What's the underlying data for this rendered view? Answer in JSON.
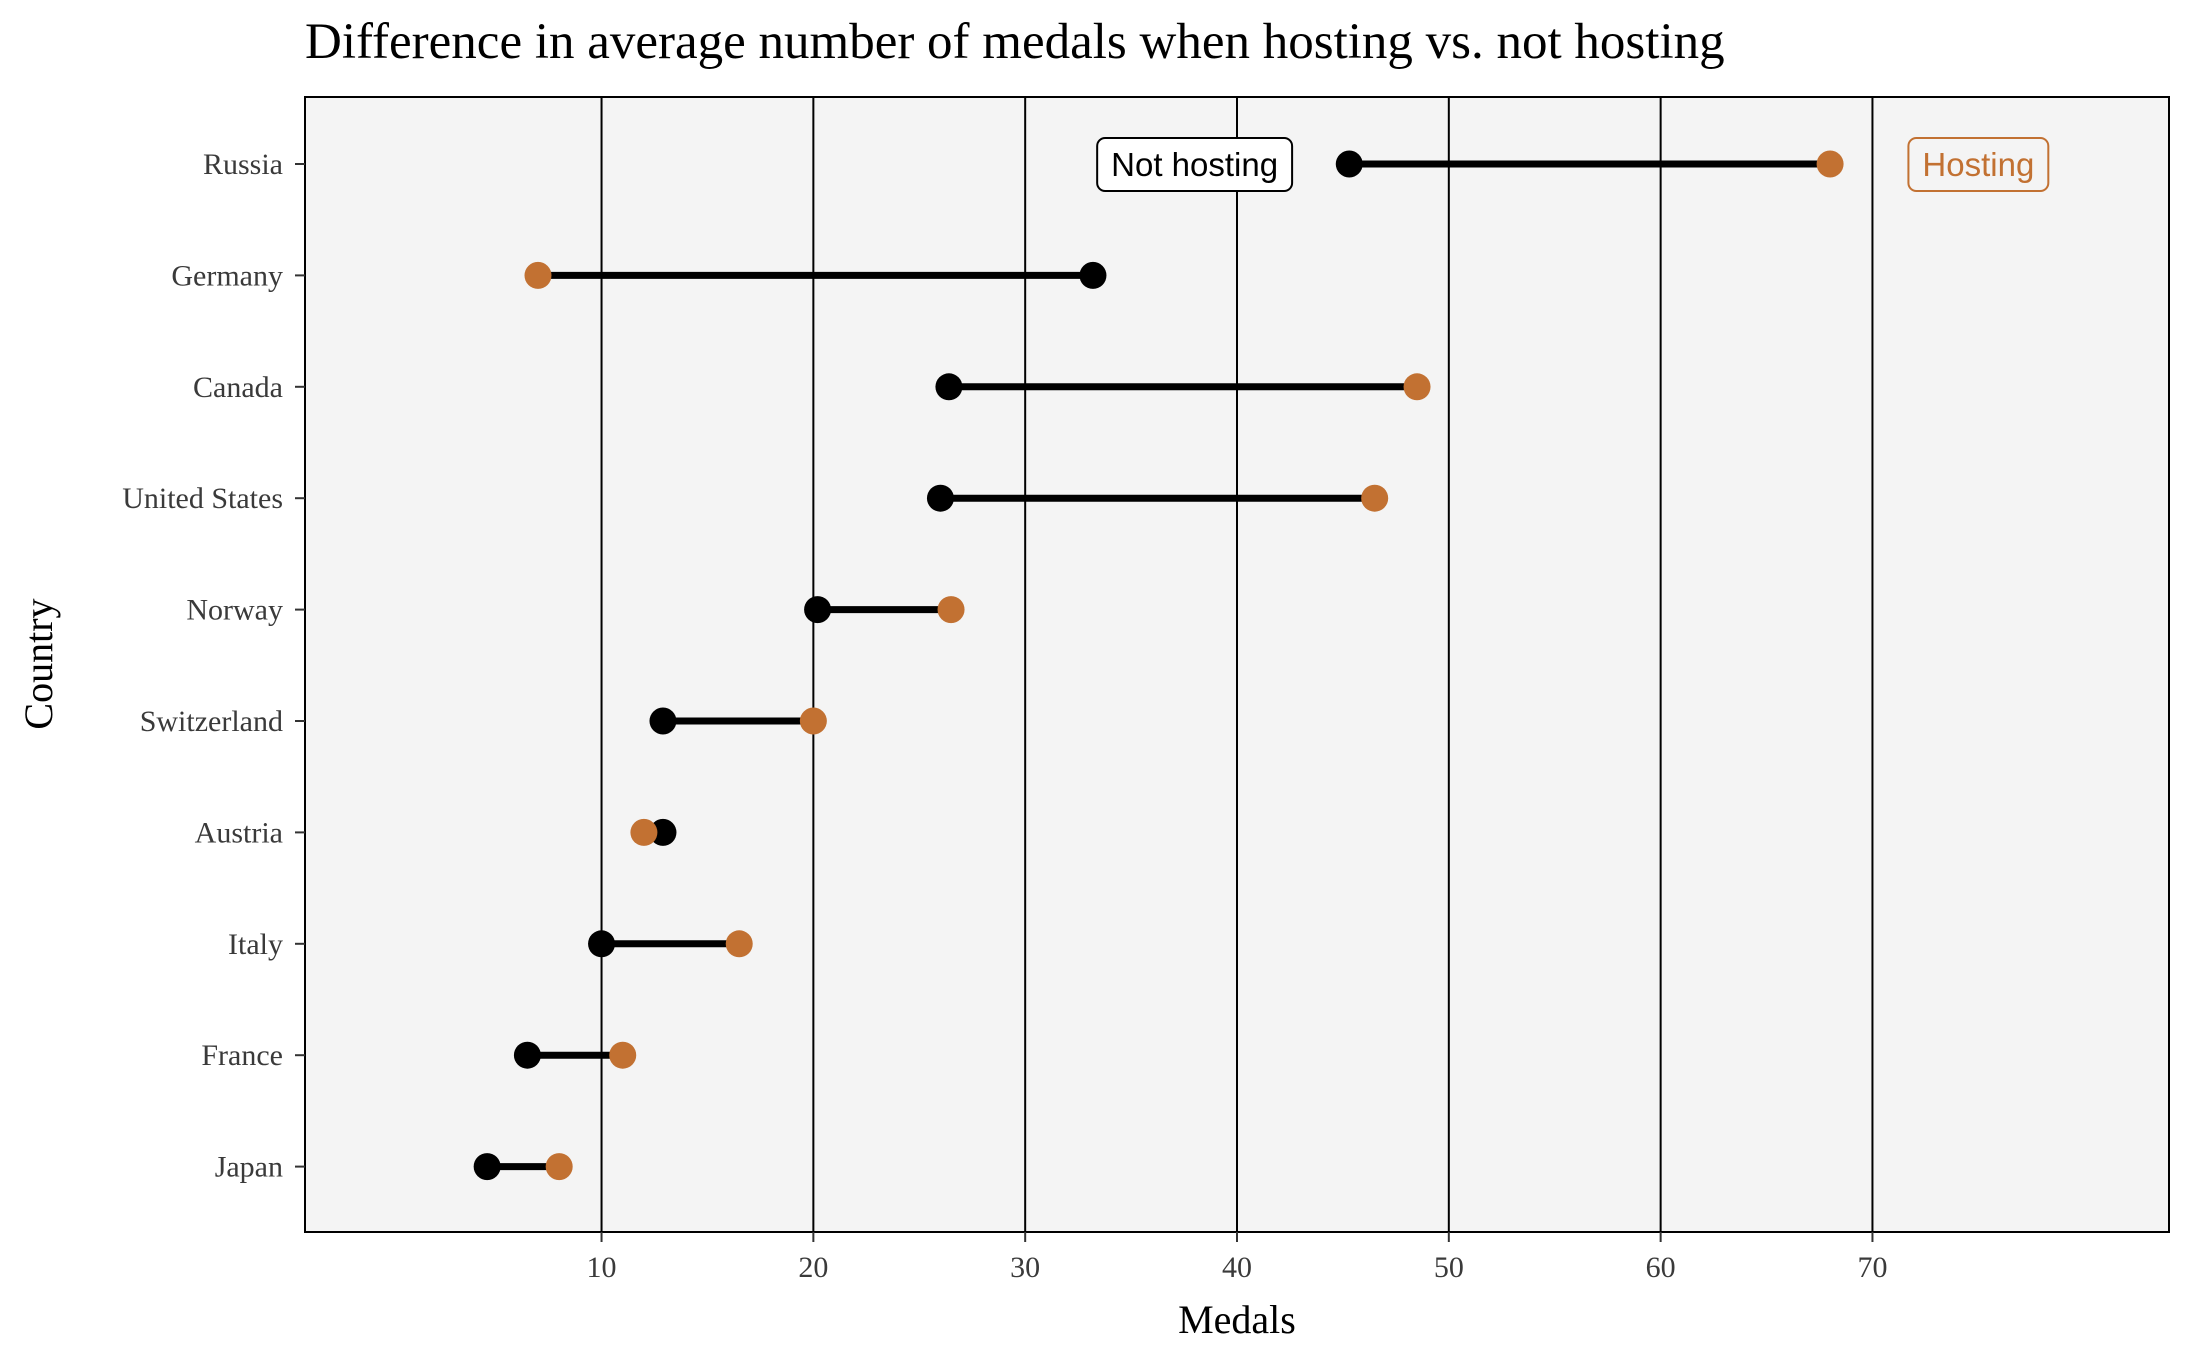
{
  "chart_data": {
    "type": "dumbbell",
    "title": "Difference in average number of medals when hosting vs. not hosting",
    "xlabel": "Medals",
    "ylabel": "Country",
    "xlim": [
      -4,
      84
    ],
    "xticks": [
      10,
      20,
      30,
      40,
      50,
      60,
      70
    ],
    "grid": "vertical major lines",
    "categories": [
      "Russia",
      "Germany",
      "Canada",
      "United States",
      "Norway",
      "Switzerland",
      "Austria",
      "Italy",
      "France",
      "Japan"
    ],
    "series": [
      {
        "name": "Not hosting",
        "color": "#000000",
        "values": [
          45.3,
          33.2,
          26.4,
          26.0,
          20.2,
          12.9,
          12.9,
          10.0,
          6.5,
          4.6
        ]
      },
      {
        "name": "Hosting",
        "color": "#c27132",
        "values": [
          68.0,
          7.0,
          48.5,
          46.5,
          26.5,
          20.0,
          12.0,
          16.5,
          11.0,
          8.0
        ]
      }
    ],
    "annotations": [
      {
        "text": "Not hosting",
        "category": "Russia",
        "x": 38,
        "color": "#000000",
        "fill": "#ffffff"
      },
      {
        "text": "Hosting",
        "category": "Russia",
        "x": 75,
        "color": "#c27132",
        "fill": "#f4f4f4"
      }
    ],
    "colors": {
      "panel_background": "#f4f4f4",
      "grid": "#000000",
      "segment": "#000000"
    }
  }
}
